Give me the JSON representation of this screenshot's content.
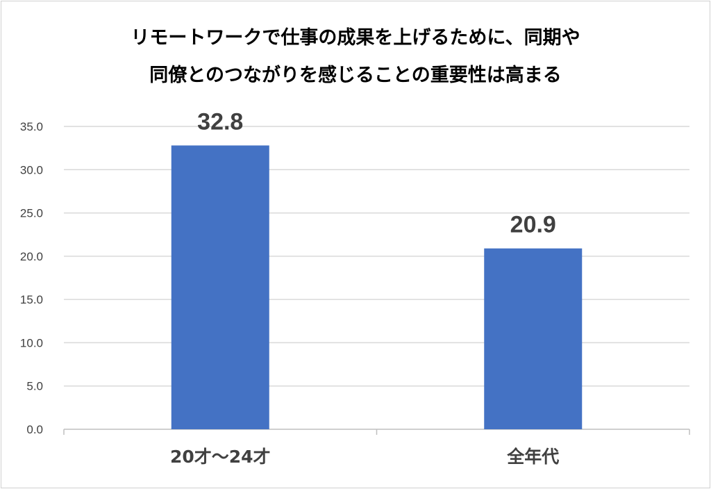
{
  "chart_data": {
    "type": "bar",
    "title_lines": [
      "リモートワークで仕事の成果を上げるために、同期や",
      "同僚とのつながりを感じることの重要性は高まる"
    ],
    "categories": [
      "20才〜24才",
      "全年代"
    ],
    "values": [
      32.8,
      20.9
    ],
    "value_labels": [
      "32.8",
      "20.9"
    ],
    "yticks": [
      "0.0",
      "5.0",
      "10.0",
      "15.0",
      "20.0",
      "25.0",
      "30.0",
      "35.0"
    ],
    "ylim": [
      0,
      35
    ],
    "ytick_step": 5,
    "grid": true,
    "legend": "none",
    "colors": {
      "bar": "#4472C4",
      "grid": "#d9d9d9",
      "axis": "#bfbfbf",
      "label": "#404040"
    }
  }
}
